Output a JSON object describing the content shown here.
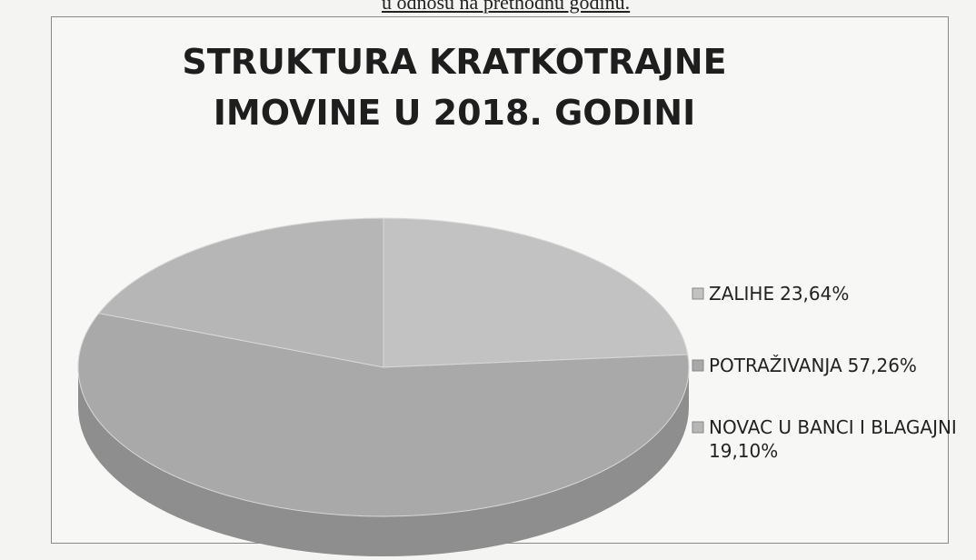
{
  "page_text": "u odnosu na prethodnu godinu.",
  "chart_data": {
    "type": "pie",
    "title": "STRUKTURA KRATKOTRAJNE IMOVINE U 2018. GODINI",
    "categories": [
      "ZALIHE",
      "POTRAŽIVANJA",
      "NOVAC U BANCI I BLAGAJNI"
    ],
    "values": [
      23.64,
      57.26,
      19.1
    ],
    "value_labels": [
      "23,64%",
      "57,26%",
      "19,10%"
    ],
    "colors": [
      "#c2c2c2",
      "#a9a9a9",
      "#b6b6b6"
    ],
    "legend": "right"
  }
}
